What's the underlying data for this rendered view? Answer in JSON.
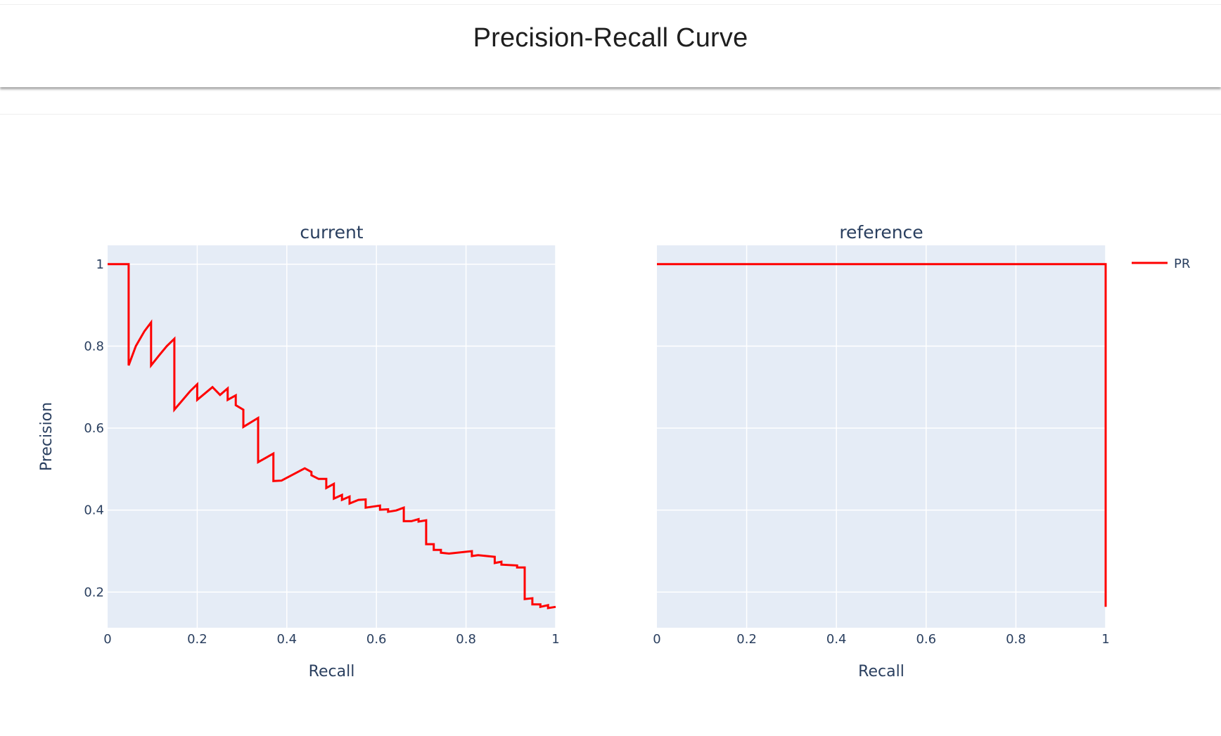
{
  "header": {
    "title": "Precision-Recall Curve"
  },
  "legend": {
    "items": [
      {
        "label": "PR",
        "color": "#ff0000"
      }
    ]
  },
  "colors": {
    "plot_bg": "#e5ecf6",
    "grid": "#ffffff",
    "line": "#ff0000",
    "text": "#2a3f5f"
  },
  "chart_data": [
    {
      "type": "line",
      "title": "current",
      "xlabel": "Recall",
      "ylabel": "Precision",
      "xlim": [
        0,
        1
      ],
      "ylim": [
        0.113,
        1.046
      ],
      "x_ticks": [
        0,
        0.2,
        0.4,
        0.6,
        0.8,
        1
      ],
      "x_tick_labels": [
        "0",
        "0.2",
        "0.4",
        "0.6",
        "0.8",
        "1"
      ],
      "y_ticks": [
        0.2,
        0.4,
        0.6,
        0.8,
        1
      ],
      "y_tick_labels": [
        "0.2",
        "0.4",
        "0.6",
        "0.8",
        "1"
      ],
      "grid": true,
      "legend_position": "right",
      "series": [
        {
          "name": "PR",
          "color": "#ff0000",
          "x": [
            0,
            0.047,
            0.047,
            0.063,
            0.082,
            0.097,
            0.097,
            0.116,
            0.132,
            0.149,
            0.149,
            0.184,
            0.2,
            0.2,
            0.234,
            0.251,
            0.268,
            0.268,
            0.286,
            0.286,
            0.303,
            0.303,
            0.336,
            0.336,
            0.37,
            0.37,
            0.388,
            0.44,
            0.455,
            0.455,
            0.471,
            0.488,
            0.488,
            0.505,
            0.505,
            0.523,
            0.523,
            0.54,
            0.54,
            0.56,
            0.576,
            0.576,
            0.608,
            0.608,
            0.626,
            0.626,
            0.644,
            0.661,
            0.661,
            0.678,
            0.694,
            0.694,
            0.711,
            0.711,
            0.728,
            0.728,
            0.744,
            0.744,
            0.762,
            0.813,
            0.813,
            0.827,
            0.864,
            0.864,
            0.879,
            0.879,
            0.914,
            0.914,
            0.931,
            0.931,
            0.948,
            0.948,
            0.966,
            0.966,
            0.983,
            0.983,
            1.0
          ],
          "y": [
            1,
            1,
            0.753,
            0.8,
            0.836,
            0.858,
            0.753,
            0.779,
            0.8,
            0.818,
            0.645,
            0.69,
            0.707,
            0.669,
            0.7,
            0.681,
            0.697,
            0.669,
            0.68,
            0.656,
            0.645,
            0.603,
            0.625,
            0.517,
            0.538,
            0.471,
            0.472,
            0.502,
            0.493,
            0.485,
            0.476,
            0.476,
            0.454,
            0.464,
            0.428,
            0.437,
            0.425,
            0.433,
            0.416,
            0.425,
            0.426,
            0.406,
            0.411,
            0.401,
            0.402,
            0.396,
            0.399,
            0.406,
            0.373,
            0.373,
            0.378,
            0.372,
            0.375,
            0.317,
            0.317,
            0.303,
            0.303,
            0.296,
            0.294,
            0.3,
            0.288,
            0.29,
            0.286,
            0.271,
            0.274,
            0.267,
            0.265,
            0.26,
            0.26,
            0.183,
            0.185,
            0.17,
            0.17,
            0.164,
            0.168,
            0.161,
            0.164
          ]
        }
      ]
    },
    {
      "type": "line",
      "title": "reference",
      "xlabel": "Recall",
      "ylabel": "",
      "xlim": [
        0,
        1
      ],
      "ylim": [
        0.113,
        1.046
      ],
      "x_ticks": [
        0,
        0.2,
        0.4,
        0.6,
        0.8,
        1
      ],
      "x_tick_labels": [
        "0",
        "0.2",
        "0.4",
        "0.6",
        "0.8",
        "1"
      ],
      "y_ticks": [
        0.2,
        0.4,
        0.6,
        0.8,
        1
      ],
      "y_tick_labels": [],
      "grid": true,
      "series": [
        {
          "name": "PR",
          "color": "#ff0000",
          "x": [
            0,
            1,
            1
          ],
          "y": [
            1,
            1,
            0.164
          ]
        }
      ]
    }
  ]
}
